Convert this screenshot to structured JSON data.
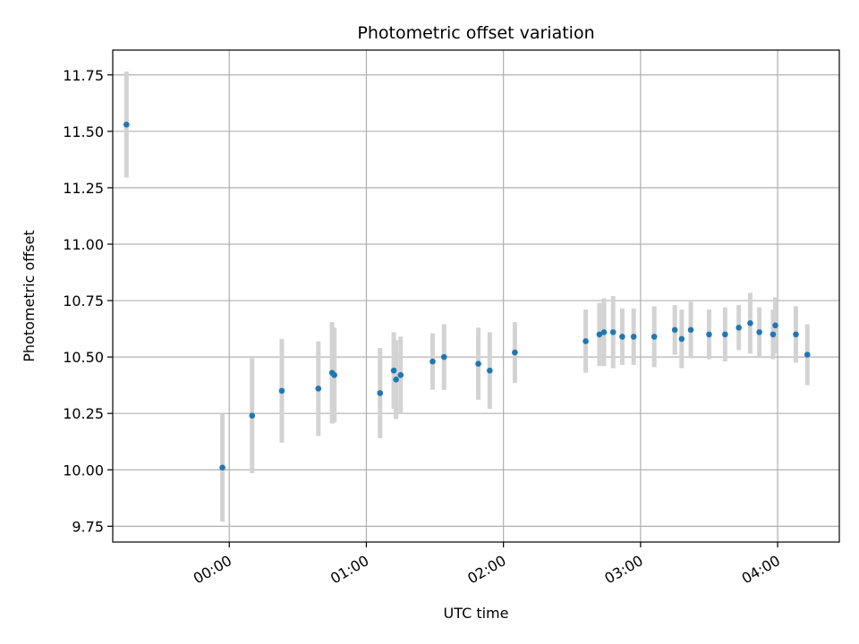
{
  "chart_data": {
    "type": "scatter",
    "title": "Photometric offset variation",
    "xlabel": "UTC time",
    "ylabel": "Photometric offset",
    "x_unit": "time",
    "xlim": [
      "23:09",
      "04:27"
    ],
    "ylim": [
      9.68,
      11.86
    ],
    "x_ticks": [
      "00:00",
      "01:00",
      "02:00",
      "03:00",
      "04:00"
    ],
    "y_ticks": [
      "9.75",
      "10.00",
      "10.25",
      "10.50",
      "10.75",
      "11.00",
      "11.25",
      "11.50",
      "11.75"
    ],
    "grid": true,
    "colors": {
      "point": "#1f77b4",
      "error_bar": "#d3d3d3"
    },
    "series": [
      {
        "points": [
          {
            "x": "23:15",
            "y": 11.53,
            "err": 0.235
          },
          {
            "x": "23:57",
            "y": 10.01,
            "err": 0.24
          },
          {
            "x": "00:10",
            "y": 10.24,
            "err": 0.255
          },
          {
            "x": "00:23",
            "y": 10.35,
            "err": 0.23
          },
          {
            "x": "00:39",
            "y": 10.36,
            "err": 0.21
          },
          {
            "x": "00:45",
            "y": 10.43,
            "err": 0.225
          },
          {
            "x": "00:46",
            "y": 10.42,
            "err": 0.21
          },
          {
            "x": "01:06",
            "y": 10.34,
            "err": 0.2
          },
          {
            "x": "01:12",
            "y": 10.44,
            "err": 0.17
          },
          {
            "x": "01:13",
            "y": 10.4,
            "err": 0.175
          },
          {
            "x": "01:15",
            "y": 10.42,
            "err": 0.17
          },
          {
            "x": "01:29",
            "y": 10.48,
            "err": 0.125
          },
          {
            "x": "01:34",
            "y": 10.5,
            "err": 0.145
          },
          {
            "x": "01:49",
            "y": 10.47,
            "err": 0.16
          },
          {
            "x": "01:54",
            "y": 10.44,
            "err": 0.17
          },
          {
            "x": "02:05",
            "y": 10.52,
            "err": 0.135
          },
          {
            "x": "02:36",
            "y": 10.57,
            "err": 0.14
          },
          {
            "x": "02:42",
            "y": 10.6,
            "err": 0.14
          },
          {
            "x": "02:44",
            "y": 10.61,
            "err": 0.15
          },
          {
            "x": "02:48",
            "y": 10.61,
            "err": 0.16
          },
          {
            "x": "02:52",
            "y": 10.59,
            "err": 0.125
          },
          {
            "x": "02:57",
            "y": 10.59,
            "err": 0.125
          },
          {
            "x": "03:06",
            "y": 10.59,
            "err": 0.135
          },
          {
            "x": "03:15",
            "y": 10.62,
            "err": 0.11
          },
          {
            "x": "03:18",
            "y": 10.58,
            "err": 0.13
          },
          {
            "x": "03:22",
            "y": 10.62,
            "err": 0.125
          },
          {
            "x": "03:30",
            "y": 10.6,
            "err": 0.11
          },
          {
            "x": "03:37",
            "y": 10.6,
            "err": 0.12
          },
          {
            "x": "03:43",
            "y": 10.63,
            "err": 0.1
          },
          {
            "x": "03:48",
            "y": 10.65,
            "err": 0.135
          },
          {
            "x": "03:52",
            "y": 10.61,
            "err": 0.11
          },
          {
            "x": "03:58",
            "y": 10.6,
            "err": 0.11
          },
          {
            "x": "03:59",
            "y": 10.64,
            "err": 0.125
          },
          {
            "x": "04:08",
            "y": 10.6,
            "err": 0.125
          },
          {
            "x": "04:13",
            "y": 10.51,
            "err": 0.135
          }
        ]
      }
    ]
  }
}
